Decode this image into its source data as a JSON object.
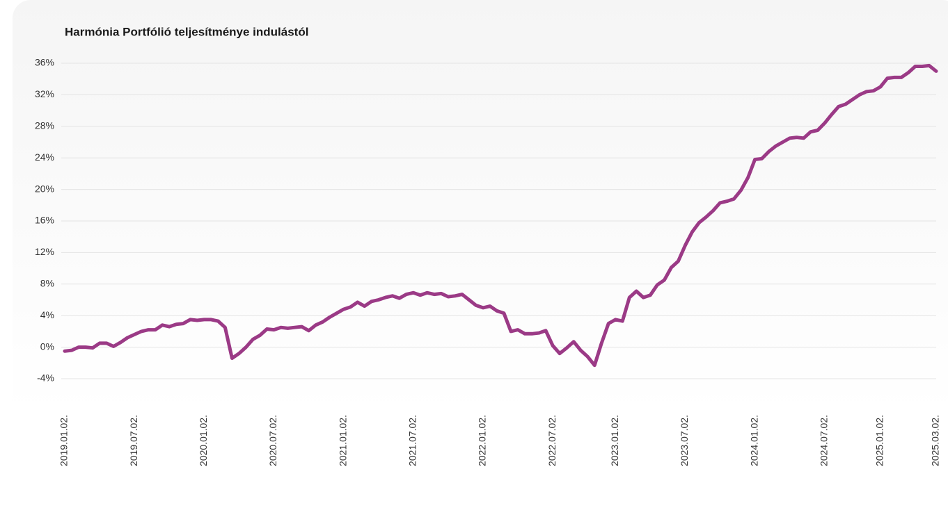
{
  "chart_data": {
    "type": "line",
    "title": "Harmónia Portfólió teljesítménye indulástól",
    "categories": [
      "2019.01.02.",
      null,
      null,
      null,
      null,
      null,
      null,
      null,
      null,
      null,
      "2019.07.02.",
      null,
      null,
      null,
      null,
      null,
      null,
      null,
      null,
      null,
      "2020.01.02.",
      null,
      null,
      null,
      null,
      null,
      null,
      null,
      null,
      null,
      "2020.07.02.",
      null,
      null,
      null,
      null,
      null,
      null,
      null,
      null,
      null,
      "2021.01.02.",
      null,
      null,
      null,
      null,
      null,
      null,
      null,
      null,
      null,
      "2021.07.02.",
      null,
      null,
      null,
      null,
      null,
      null,
      null,
      null,
      null,
      "2022.01.02.",
      null,
      null,
      null,
      null,
      null,
      null,
      null,
      null,
      null,
      "2022.07.02.",
      null,
      null,
      null,
      null,
      null,
      null,
      null,
      null,
      "2023.01.02.",
      null,
      null,
      null,
      null,
      null,
      null,
      null,
      null,
      null,
      "2023.07.02.",
      null,
      null,
      null,
      null,
      null,
      null,
      null,
      null,
      null,
      "2024.01.02.",
      null,
      null,
      null,
      null,
      null,
      null,
      null,
      null,
      null,
      "2024.07.02.",
      null,
      null,
      null,
      null,
      null,
      null,
      null,
      "2025.01.02.",
      null,
      null,
      null,
      null,
      null,
      null,
      null,
      "2025.03.02."
    ],
    "series": [
      {
        "color": "#9b3a86",
        "values": [
          -0.5,
          -0.4,
          0.0,
          0.0,
          -0.1,
          0.5,
          0.5,
          0.1,
          0.6,
          1.2,
          1.6,
          2.0,
          2.2,
          2.2,
          2.8,
          2.6,
          2.9,
          3.0,
          3.5,
          3.4,
          3.5,
          3.5,
          3.3,
          2.5,
          -1.4,
          -0.8,
          0.0,
          1.0,
          1.5,
          2.3,
          2.2,
          2.5,
          2.4,
          2.5,
          2.6,
          2.1,
          2.8,
          3.2,
          3.8,
          4.3,
          4.8,
          5.1,
          5.7,
          5.2,
          5.8,
          6.0,
          6.3,
          6.5,
          6.2,
          6.7,
          6.9,
          6.6,
          6.9,
          6.7,
          6.8,
          6.4,
          6.5,
          6.7,
          6.0,
          5.3,
          5.0,
          5.2,
          4.6,
          4.3,
          2.0,
          2.2,
          1.7,
          1.7,
          1.8,
          2.1,
          0.2,
          -0.8,
          -0.1,
          0.7,
          -0.4,
          -1.2,
          -2.3,
          0.5,
          3.0,
          3.5,
          3.3,
          6.3,
          7.1,
          6.3,
          6.6,
          7.9,
          8.5,
          10.1,
          10.9,
          12.9,
          14.6,
          15.8,
          16.5,
          17.3,
          18.3,
          18.5,
          18.8,
          19.9,
          21.5,
          23.8,
          23.9,
          24.8,
          25.5,
          26.0,
          26.5,
          26.6,
          26.5,
          27.3,
          27.5,
          28.4,
          29.5,
          30.5,
          30.8,
          31.4,
          32.0,
          32.4,
          32.5,
          33.0,
          34.1,
          34.2,
          34.2,
          34.8,
          35.6,
          35.6,
          35.7,
          35.0
        ]
      }
    ],
    "ylim": [
      -4,
      36
    ],
    "yticks": [
      {
        "value": -4,
        "label": "-4%"
      },
      {
        "value": 0,
        "label": "0%"
      },
      {
        "value": 4,
        "label": "4%"
      },
      {
        "value": 8,
        "label": "8%"
      },
      {
        "value": 12,
        "label": "12%"
      },
      {
        "value": 16,
        "label": "16%"
      },
      {
        "value": 20,
        "label": "20%"
      },
      {
        "value": 24,
        "label": "24%"
      },
      {
        "value": 28,
        "label": "28%"
      },
      {
        "value": 32,
        "label": "32%"
      },
      {
        "value": 36,
        "label": "36%"
      }
    ],
    "grid": true
  }
}
